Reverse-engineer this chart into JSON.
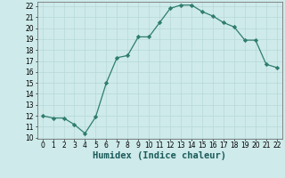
{
  "title": "",
  "xlabel": "Humidex (Indice chaleur)",
  "ylabel": "",
  "x": [
    0,
    1,
    2,
    3,
    4,
    5,
    6,
    7,
    8,
    9,
    10,
    11,
    12,
    13,
    14,
    15,
    16,
    17,
    18,
    19,
    20,
    21,
    22
  ],
  "y": [
    12.0,
    11.8,
    11.8,
    11.2,
    10.4,
    11.9,
    15.0,
    17.3,
    17.5,
    19.2,
    19.2,
    20.5,
    21.8,
    22.1,
    22.1,
    21.5,
    21.1,
    20.5,
    20.1,
    18.9,
    18.9,
    16.7,
    16.4
  ],
  "line_color": "#2e7d6e",
  "marker": "D",
  "marker_size": 2.2,
  "bg_color": "#ceeaea",
  "grid_color": "#b8d8d8",
  "ylim": [
    9.9,
    22.4
  ],
  "xlim": [
    -0.5,
    22.5
  ],
  "yticks": [
    10,
    11,
    12,
    13,
    14,
    15,
    16,
    17,
    18,
    19,
    20,
    21,
    22
  ],
  "xticks": [
    0,
    1,
    2,
    3,
    4,
    5,
    6,
    7,
    8,
    9,
    10,
    11,
    12,
    13,
    14,
    15,
    16,
    17,
    18,
    19,
    20,
    21,
    22
  ],
  "tick_fontsize": 5.5,
  "xlabel_fontsize": 7.5
}
